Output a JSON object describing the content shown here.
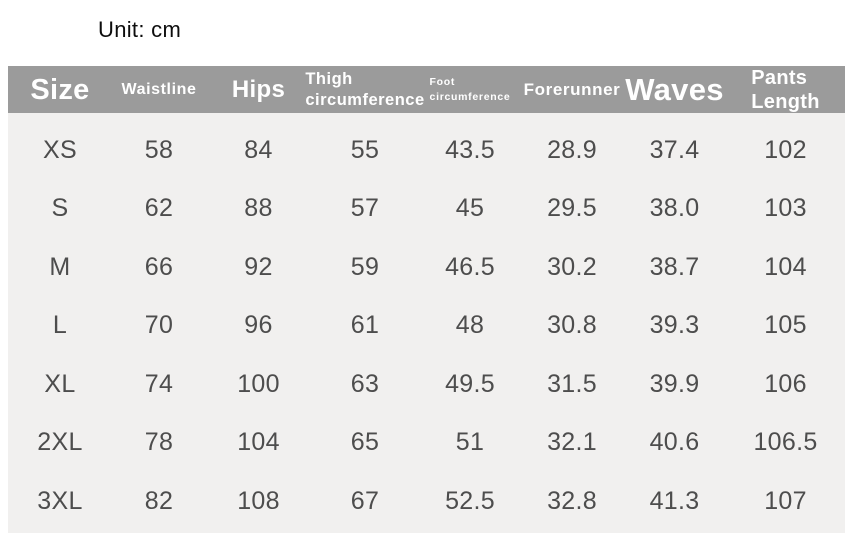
{
  "header": {
    "unit_label": "Unit: cm"
  },
  "table": {
    "columns": [
      {
        "name": "size",
        "line1": "Size"
      },
      {
        "name": "waistline",
        "line1": "Waistline"
      },
      {
        "name": "hips",
        "line1": "Hips"
      },
      {
        "name": "thigh_circumference",
        "line1": "Thigh",
        "line2": "circumference"
      },
      {
        "name": "foot_circumference",
        "line1": "Foot",
        "line2": "circumference"
      },
      {
        "name": "forerunner",
        "line1": "Forerunner"
      },
      {
        "name": "waves",
        "line1": "Waves"
      },
      {
        "name": "pants_length",
        "line1": "Pants",
        "line2": "Length"
      }
    ]
  },
  "chart_data": {
    "type": "table",
    "title": "Unit: cm",
    "columns": [
      "Size",
      "Waistline",
      "Hips",
      "Thigh circumference",
      "Foot circumference",
      "Forerunner",
      "Waves",
      "Pants Length"
    ],
    "rows": [
      [
        "XS",
        "58",
        "84",
        "55",
        "43.5",
        "28.9",
        "37.4",
        "102"
      ],
      [
        "S",
        "62",
        "88",
        "57",
        "45",
        "29.5",
        "38.0",
        "103"
      ],
      [
        "M",
        "66",
        "92",
        "59",
        "46.5",
        "30.2",
        "38.7",
        "104"
      ],
      [
        "L",
        "70",
        "96",
        "61",
        "48",
        "30.8",
        "39.3",
        "105"
      ],
      [
        "XL",
        "74",
        "100",
        "63",
        "49.5",
        "31.5",
        "39.9",
        "106"
      ],
      [
        "2XL",
        "78",
        "104",
        "65",
        "51",
        "32.1",
        "40.6",
        "106.5"
      ],
      [
        "3XL",
        "82",
        "108",
        "67",
        "52.5",
        "32.8",
        "41.3",
        "107"
      ]
    ]
  },
  "colors": {
    "header_bg": "#9b9b9b",
    "header_text": "#ffffff",
    "body_bg": "#f1f0ef",
    "data_text": "#4d4d4d",
    "unit_text": "#0d0d0d",
    "page_bg": "#ffffff"
  }
}
